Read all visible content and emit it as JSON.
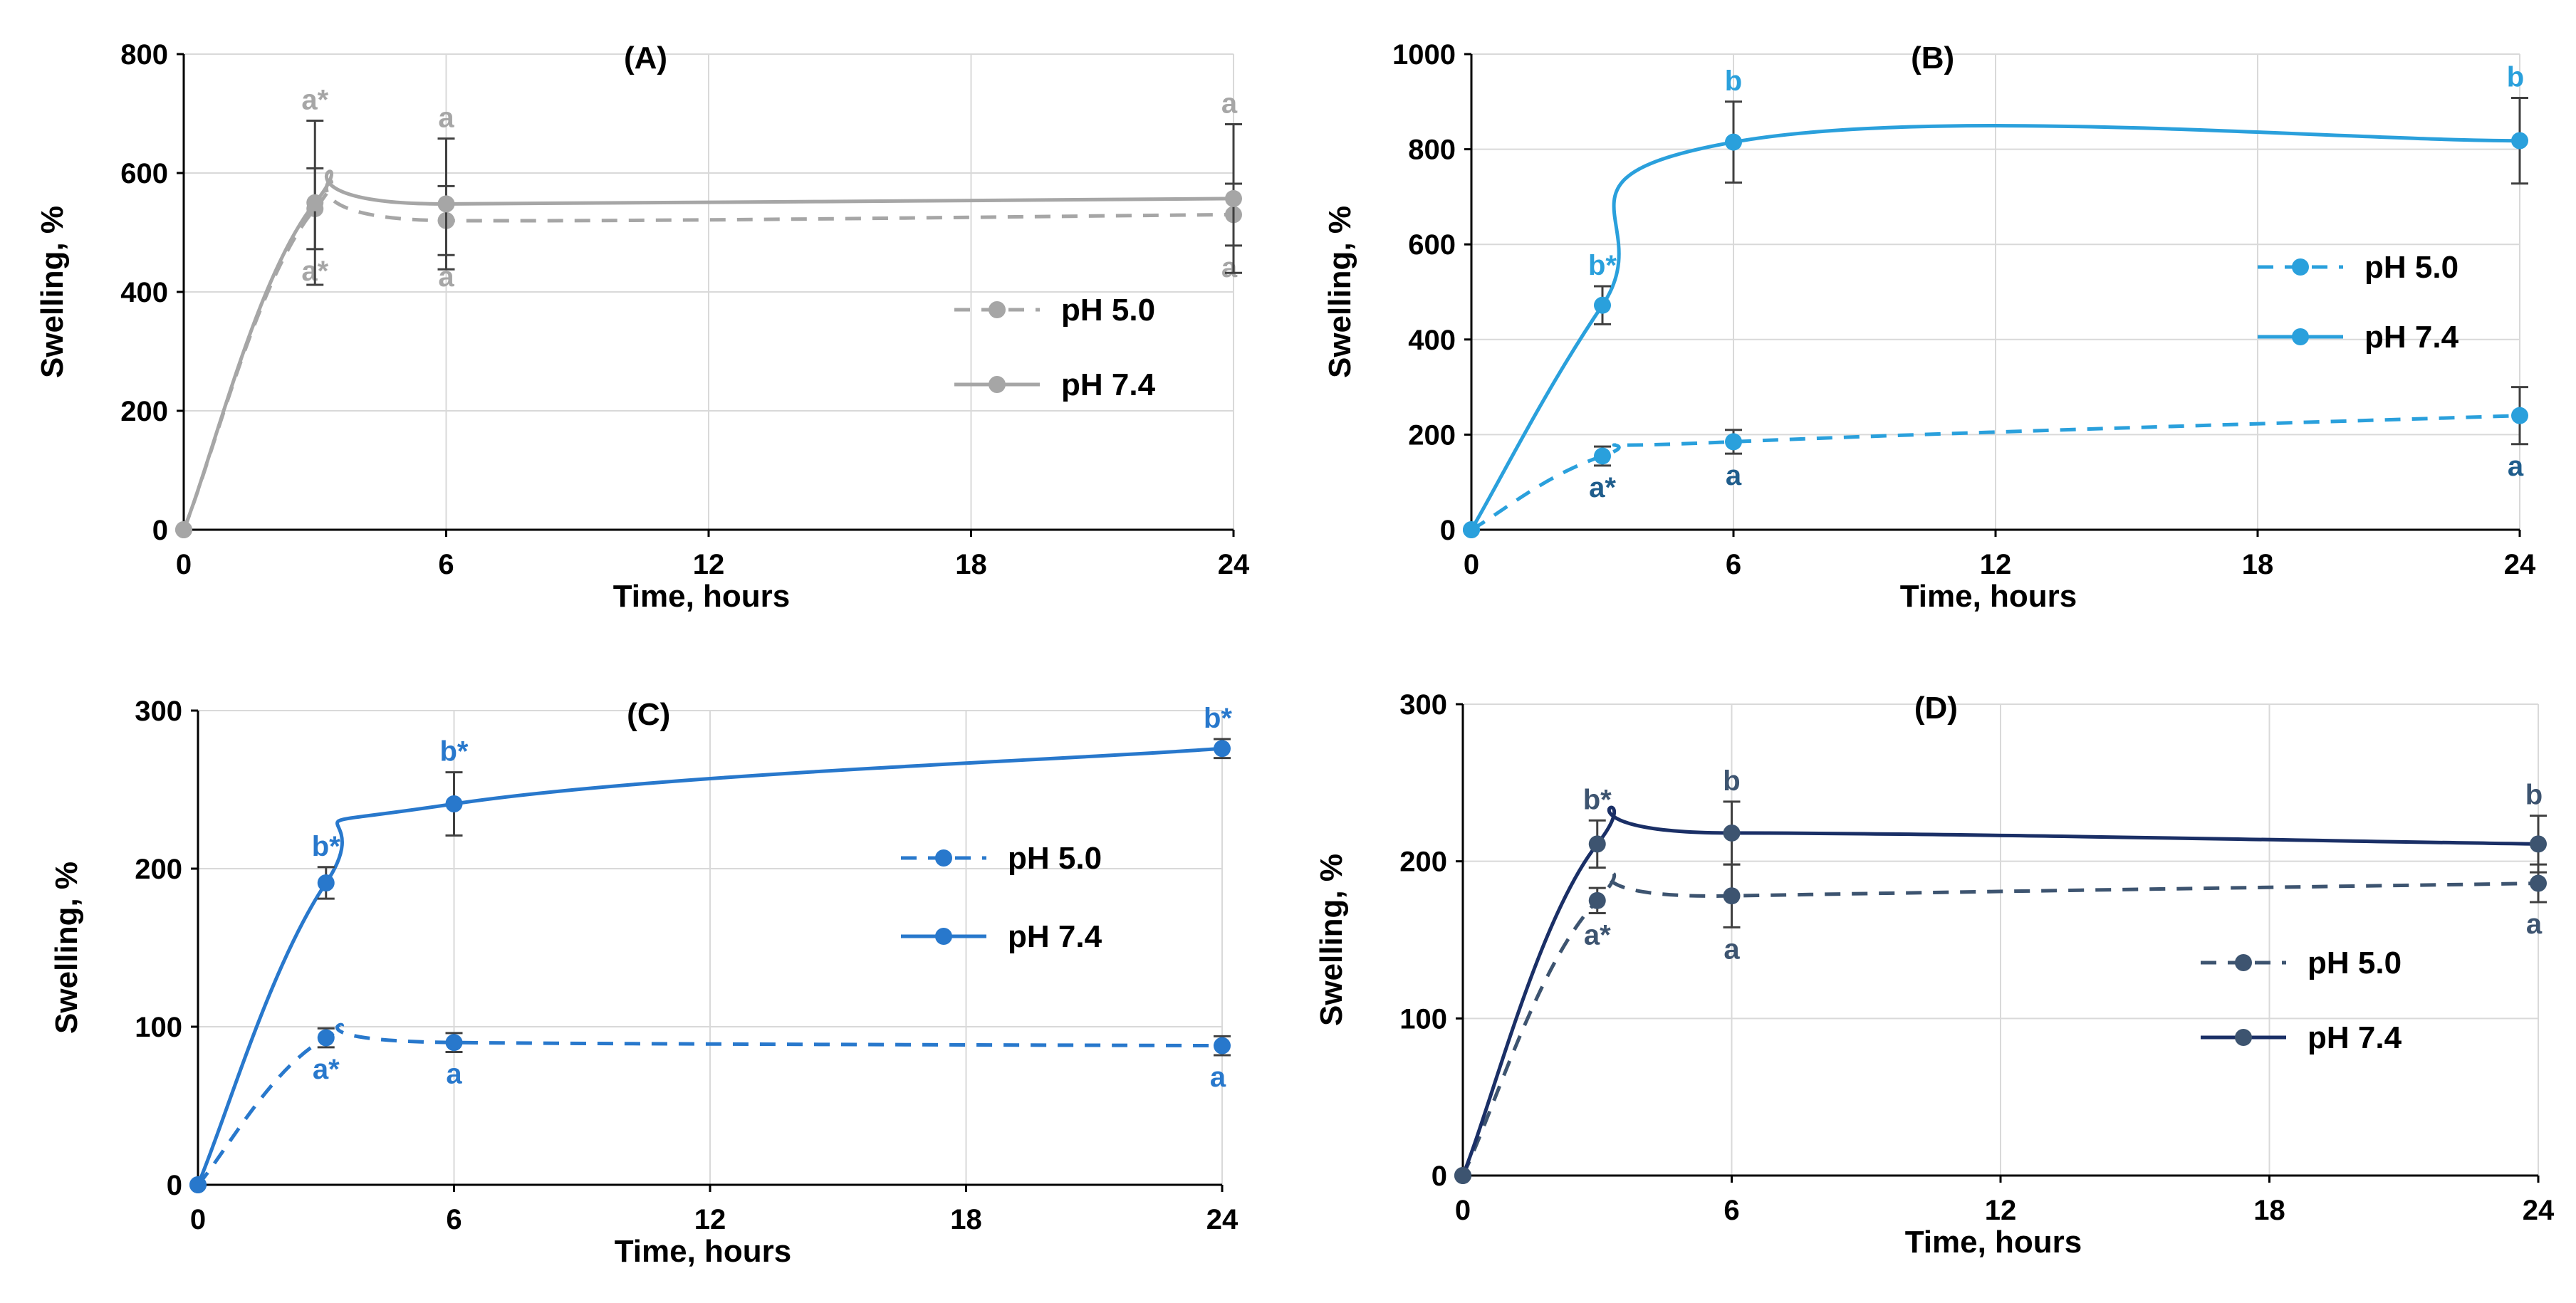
{
  "chart_data": [
    {
      "type": "line",
      "title": "(A)",
      "xlabel": "Time, hours",
      "ylabel": "Swelling, %",
      "x": [
        0,
        3,
        6,
        24
      ],
      "xticks": [
        0,
        6,
        12,
        18,
        24
      ],
      "xlim": [
        0,
        24
      ],
      "ylim": [
        0,
        800
      ],
      "yticks": [
        0,
        200,
        400,
        600,
        800
      ],
      "grid": true,
      "legend_position": "right",
      "colors": {
        "pH 5.0": "#a6a6a6",
        "pH 7.4": "#a6a6a6"
      },
      "series": [
        {
          "name": "pH 5.0",
          "values": [
            0,
            540,
            520,
            530
          ],
          "errors": [
            0,
            68,
            58,
            52
          ],
          "labels": [
            "",
            "a*",
            "a",
            "a"
          ],
          "style": "dashed"
        },
        {
          "name": "pH 7.4",
          "values": [
            0,
            550,
            548,
            557
          ],
          "errors": [
            0,
            138,
            110,
            125
          ],
          "labels": [
            "",
            "a*",
            "a",
            "a"
          ],
          "style": "solid"
        }
      ]
    },
    {
      "type": "line",
      "title": "(B)",
      "xlabel": "Time, hours",
      "ylabel": "Swelling, %",
      "x": [
        0,
        3,
        6,
        24
      ],
      "xticks": [
        0,
        6,
        12,
        18,
        24
      ],
      "xlim": [
        0,
        24
      ],
      "ylim": [
        0,
        1000
      ],
      "yticks": [
        0,
        200,
        400,
        600,
        800,
        1000
      ],
      "grid": true,
      "legend_position": "right",
      "colors": {
        "pH 5.0": "#2aa0dc",
        "pH 7.4": "#2aa0dc"
      },
      "label_colors": {
        "pH 5.0": "#1f5d8c",
        "pH 7.4": "#2aa0dc"
      },
      "series": [
        {
          "name": "pH 5.0",
          "values": [
            0,
            155,
            185,
            240
          ],
          "errors": [
            0,
            20,
            25,
            60
          ],
          "labels": [
            "",
            "a*",
            "a",
            "a"
          ],
          "style": "dashed"
        },
        {
          "name": "pH 7.4",
          "values": [
            0,
            472,
            815,
            818
          ],
          "errors": [
            0,
            40,
            85,
            90
          ],
          "labels": [
            "",
            "b*",
            "b",
            "b"
          ],
          "style": "solid"
        }
      ]
    },
    {
      "type": "line",
      "title": "(C)",
      "xlabel": "Time, hours",
      "ylabel": "Swelling, %",
      "x": [
        0,
        3,
        6,
        24
      ],
      "xticks": [
        0,
        6,
        12,
        18,
        24
      ],
      "xlim": [
        0,
        24
      ],
      "ylim": [
        0,
        300
      ],
      "yticks": [
        0,
        100,
        200,
        300
      ],
      "grid": true,
      "legend_position": "right",
      "colors": {
        "pH 5.0": "#2878cc",
        "pH 7.4": "#2878cc"
      },
      "series": [
        {
          "name": "pH 5.0",
          "values": [
            0,
            93,
            90,
            88
          ],
          "errors": [
            0,
            6,
            6,
            6
          ],
          "labels": [
            "",
            "a*",
            "a",
            "a"
          ],
          "style": "dashed"
        },
        {
          "name": "pH 7.4",
          "values": [
            0,
            191,
            241,
            276
          ],
          "errors": [
            0,
            10,
            20,
            6
          ],
          "labels": [
            "",
            "b*",
            "b*",
            "b*"
          ],
          "style": "solid"
        }
      ]
    },
    {
      "type": "line",
      "title": "(D)",
      "xlabel": "Time, hours",
      "ylabel": "Swelling, %",
      "x": [
        0,
        3,
        6,
        24
      ],
      "xticks": [
        0,
        6,
        12,
        18,
        24
      ],
      "xlim": [
        0,
        24
      ],
      "ylim": [
        0,
        300
      ],
      "yticks": [
        0,
        100,
        200,
        300
      ],
      "grid": true,
      "legend_position": "right",
      "colors": {
        "pH 5.0": "#3d5470",
        "pH 7.4": "#1a2f66"
      },
      "marker_color": "#3d5470",
      "label_color": "#3d5470",
      "series": [
        {
          "name": "pH 5.0",
          "values": [
            0,
            175,
            178,
            186
          ],
          "errors": [
            0,
            8,
            20,
            12
          ],
          "labels": [
            "",
            "a*",
            "a",
            "a"
          ],
          "style": "dashed"
        },
        {
          "name": "pH 7.4",
          "values": [
            0,
            211,
            218,
            211
          ],
          "errors": [
            0,
            15,
            20,
            18
          ],
          "labels": [
            "",
            "b*",
            "b",
            "b"
          ],
          "style": "solid"
        }
      ]
    }
  ]
}
